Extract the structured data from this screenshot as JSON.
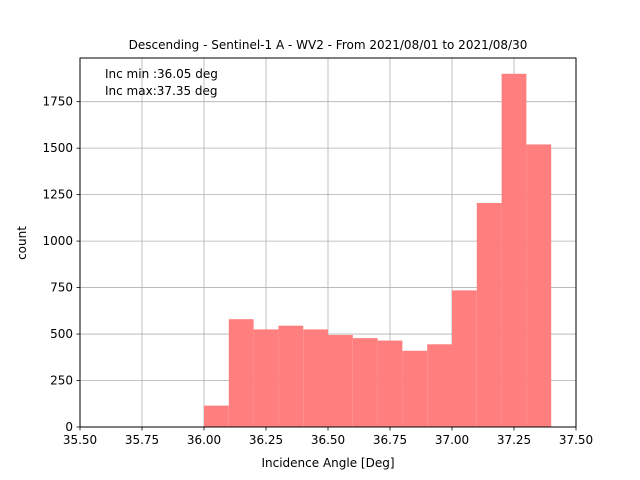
{
  "chart_data": {
    "type": "bar",
    "title": "Descending - Sentinel-1 A - WV2 - From 2021/08/01 to 2021/08/30",
    "xlabel": "Incidence Angle [Deg]",
    "ylabel": "count",
    "xlim": [
      35.5,
      37.5
    ],
    "ylim": [
      0,
      1985
    ],
    "grid": true,
    "bar_color": "#ff7f7f",
    "annotations": [
      "Inc min :36.05 deg",
      "Inc max:37.35 deg"
    ],
    "x_ticks": [
      "35.50",
      "35.75",
      "36.00",
      "36.25",
      "36.50",
      "36.75",
      "37.00",
      "37.25",
      "37.50"
    ],
    "y_ticks": [
      "0",
      "250",
      "500",
      "750",
      "1000",
      "1250",
      "1500",
      "1750"
    ],
    "bins": [
      {
        "start": 36.0,
        "end": 36.1,
        "count": 115
      },
      {
        "start": 36.1,
        "end": 36.2,
        "count": 580
      },
      {
        "start": 36.2,
        "end": 36.3,
        "count": 525
      },
      {
        "start": 36.3,
        "end": 36.4,
        "count": 545
      },
      {
        "start": 36.4,
        "end": 36.5,
        "count": 525
      },
      {
        "start": 36.5,
        "end": 36.6,
        "count": 495
      },
      {
        "start": 36.6,
        "end": 36.7,
        "count": 478
      },
      {
        "start": 36.7,
        "end": 36.8,
        "count": 465
      },
      {
        "start": 36.8,
        "end": 36.9,
        "count": 410
      },
      {
        "start": 36.9,
        "end": 37.0,
        "count": 445
      },
      {
        "start": 37.0,
        "end": 37.1,
        "count": 735
      },
      {
        "start": 37.1,
        "end": 37.2,
        "count": 1205
      },
      {
        "start": 37.2,
        "end": 37.3,
        "count": 1900
      },
      {
        "start": 37.3,
        "end": 37.4,
        "count": 1520
      }
    ]
  }
}
